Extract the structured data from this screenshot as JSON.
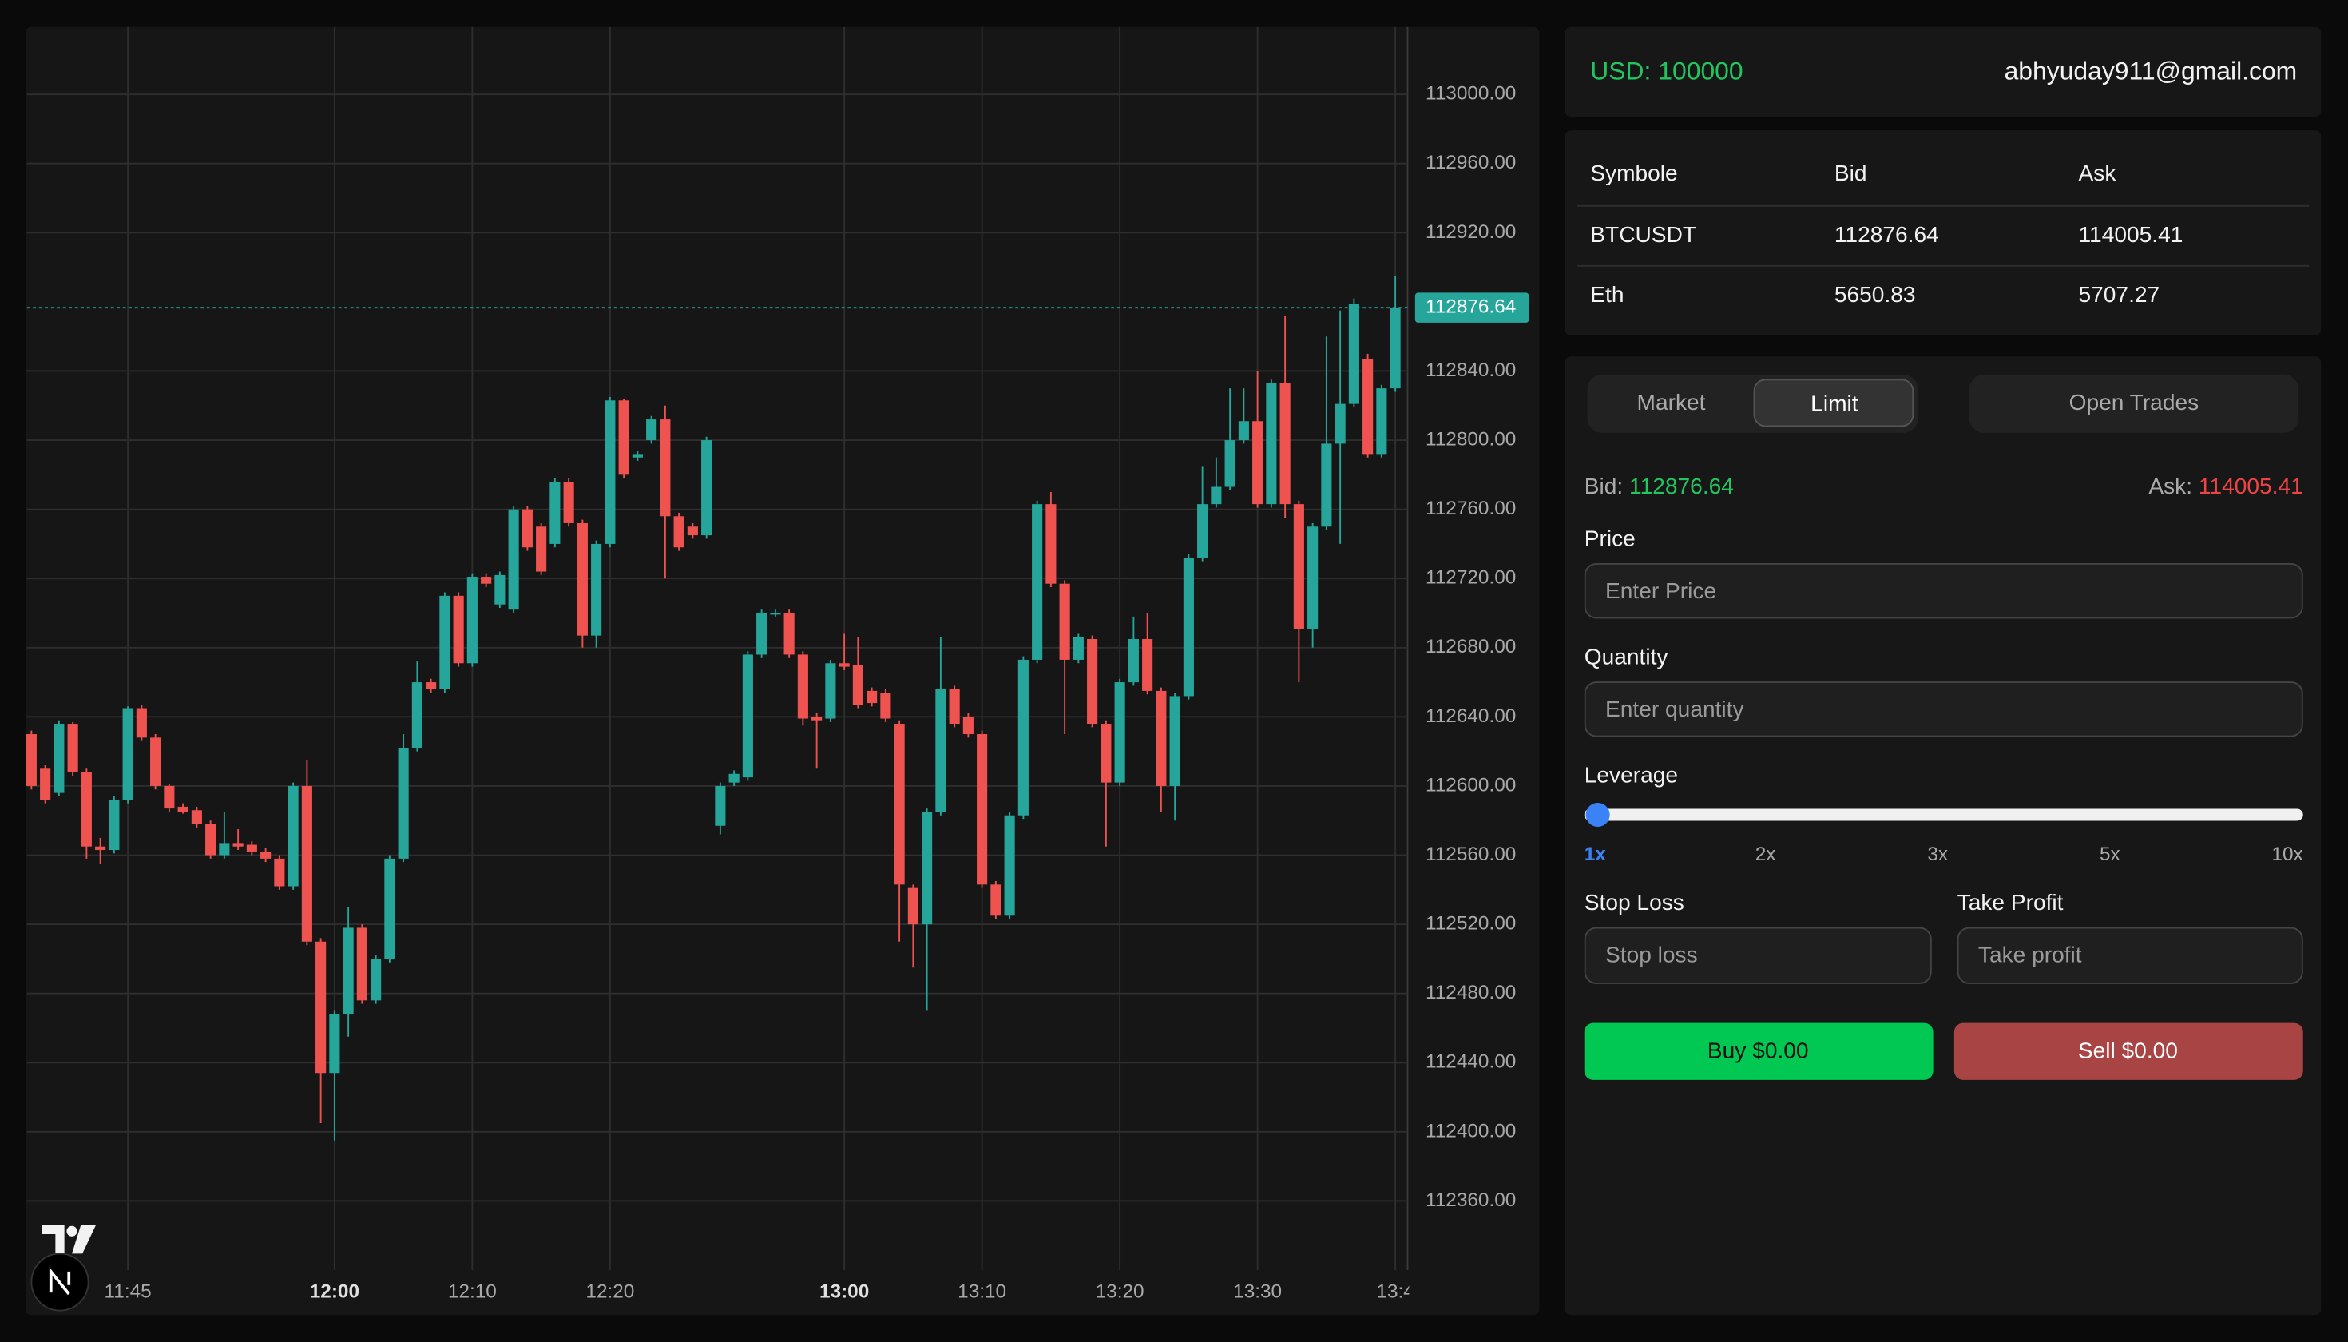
{
  "account": {
    "balance": "USD: 100000",
    "email": "abhyuday911@gmail.com"
  },
  "market_table": {
    "headers": [
      "Symbole",
      "Bid",
      "Ask"
    ],
    "rows": [
      [
        "BTCUSDT",
        "112876.64",
        "114005.41"
      ],
      [
        "Eth",
        "5650.83",
        "5707.27"
      ]
    ]
  },
  "order_form": {
    "tabs": [
      "Market",
      "Limit"
    ],
    "active_tab": "Limit",
    "open_trades": "Open Trades",
    "bid_label": "Bid:",
    "bid": "112876.64",
    "ask_label": "Ask:",
    "ask": "114005.41",
    "price_label": "Price",
    "price_placeholder": "Enter Price",
    "quantity_label": "Quantity",
    "quantity_placeholder": "Enter quantity",
    "leverage_label": "Leverage",
    "leverage_marks": [
      "1x",
      "2x",
      "3x",
      "5x",
      "10x"
    ],
    "leverage_selected": "1x",
    "stop_loss_label": "Stop Loss",
    "stop_loss_placeholder": "Stop loss",
    "take_profit_label": "Take Profit",
    "take_profit_placeholder": "Take profit",
    "buy": "Buy $0.00",
    "sell": "Sell $0.00"
  },
  "chart": {
    "type": "candlestick",
    "up_color": "#26a69a",
    "down_color": "#ef5350",
    "grid": true,
    "categories": [
      null,
      null,
      null,
      null,
      null,
      null,
      null,
      "11:45",
      null,
      null,
      null,
      null,
      null,
      null,
      null,
      null,
      null,
      null,
      null,
      null,
      null,
      null,
      "12:00",
      null,
      null,
      null,
      null,
      null,
      null,
      null,
      null,
      null,
      "12:10",
      null,
      null,
      null,
      null,
      null,
      null,
      null,
      null,
      null,
      "12:20",
      null,
      null,
      null,
      null,
      null,
      null,
      null,
      null,
      null,
      null,
      null,
      null,
      null,
      null,
      null,
      null,
      "13:00",
      null,
      null,
      null,
      null,
      null,
      null,
      null,
      null,
      null,
      "13:10",
      null,
      null,
      null,
      null,
      null,
      null,
      null,
      null,
      null,
      "13:20",
      null,
      null,
      null,
      null,
      null,
      null,
      null,
      null,
      null,
      "13:30",
      null,
      null,
      null,
      null,
      null,
      null,
      null,
      null,
      null,
      "13:4"
    ],
    "candles": [
      [
        112630,
        112632,
        112598,
        112600
      ],
      [
        112610,
        112612,
        112590,
        112592
      ],
      [
        112596,
        112638,
        112594,
        112636
      ],
      [
        112636,
        112637,
        112606,
        112608
      ],
      [
        112608,
        112610,
        112558,
        112565
      ],
      [
        112565,
        112570,
        112555,
        112563
      ],
      [
        112563,
        112594,
        112561,
        112592
      ],
      [
        112592,
        112646,
        112590,
        112645
      ],
      [
        112645,
        112647,
        112626,
        112628
      ],
      [
        112628,
        112630,
        112598,
        112600
      ],
      [
        112600,
        112601,
        112585,
        112587
      ],
      [
        112588,
        112590,
        112584,
        112585
      ],
      [
        112586,
        112588,
        112576,
        112578
      ],
      [
        112578,
        112580,
        112558,
        112560
      ],
      [
        112560,
        112585,
        112558,
        112567
      ],
      [
        112567,
        112575,
        112563,
        112565
      ],
      [
        112566,
        112568,
        112560,
        112562
      ],
      [
        112562,
        112564,
        112556,
        112558
      ],
      [
        112558,
        112560,
        112540,
        112542
      ],
      [
        112542,
        112602,
        112540,
        112600
      ],
      [
        112600,
        112615,
        112508,
        112510
      ],
      [
        112510,
        112512,
        112405,
        112434
      ],
      [
        112434,
        112470,
        112395,
        112468
      ],
      [
        112468,
        112530,
        112455,
        112518
      ],
      [
        112518,
        112520,
        112474,
        112476
      ],
      [
        112476,
        112502,
        112474,
        112500
      ],
      [
        112500,
        112560,
        112498,
        112558
      ],
      [
        112558,
        112630,
        112556,
        112622
      ],
      [
        112622,
        112672,
        112620,
        112660
      ],
      [
        112660,
        112662,
        112654,
        112656
      ],
      [
        112656,
        112712,
        112654,
        112710
      ],
      [
        112710,
        112712,
        112669,
        112671
      ],
      [
        112671,
        112723,
        112669,
        112721
      ],
      [
        112721,
        112723,
        112715,
        112717
      ],
      [
        112705,
        112724,
        112703,
        112722
      ],
      [
        112702,
        112762,
        112700,
        112760
      ],
      [
        112760,
        112762,
        112736,
        112738
      ],
      [
        112750,
        112752,
        112722,
        112724
      ],
      [
        112740,
        112778,
        112738,
        112776
      ],
      [
        112776,
        112778,
        112750,
        112752
      ],
      [
        112752,
        112754,
        112680,
        112687
      ],
      [
        112687,
        112742,
        112680,
        112740
      ],
      [
        112740,
        112825,
        112738,
        112823
      ],
      [
        112823,
        112824,
        112778,
        112780
      ],
      [
        112790,
        112794,
        112788,
        112792
      ],
      [
        112800,
        112814,
        112798,
        112812
      ],
      [
        112812,
        112820,
        112720,
        112756
      ],
      [
        112756,
        112758,
        112736,
        112738
      ],
      [
        112750,
        112752,
        112743,
        112745
      ],
      [
        112745,
        112802,
        112743,
        112800
      ],
      [
        112577,
        112602,
        112572,
        112600
      ],
      [
        112602,
        112609,
        112600,
        112607
      ],
      [
        112605,
        112678,
        112603,
        112676
      ],
      [
        112676,
        112702,
        112674,
        112700
      ],
      [
        112700,
        112702,
        112698,
        112700
      ],
      [
        112700,
        112702,
        112674,
        112676
      ],
      [
        112676,
        112678,
        112635,
        112639
      ],
      [
        112640,
        112642,
        112610,
        112638
      ],
      [
        112639,
        112673,
        112637,
        112671
      ],
      [
        112671,
        112688,
        112667,
        112669
      ],
      [
        112670,
        112686,
        112645,
        112647
      ],
      [
        112655,
        112657,
        112646,
        112648
      ],
      [
        112654,
        112656,
        112637,
        112639
      ],
      [
        112636,
        112638,
        112510,
        112543
      ],
      [
        112541,
        112543,
        112495,
        112520
      ],
      [
        112520,
        112587,
        112470,
        112585
      ],
      [
        112585,
        112686,
        112583,
        112656
      ],
      [
        112656,
        112658,
        112634,
        112636
      ],
      [
        112640,
        112642,
        112628,
        112630
      ],
      [
        112630,
        112632,
        112541,
        112543
      ],
      [
        112543,
        112545,
        112523,
        112525
      ],
      [
        112525,
        112585,
        112523,
        112583
      ],
      [
        112583,
        112675,
        112581,
        112673
      ],
      [
        112673,
        112765,
        112671,
        112763
      ],
      [
        112763,
        112770,
        112715,
        112717
      ],
      [
        112717,
        112719,
        112630,
        112673
      ],
      [
        112673,
        112688,
        112671,
        112686
      ],
      [
        112685,
        112687,
        112634,
        112636
      ],
      [
        112636,
        112638,
        112565,
        112602
      ],
      [
        112602,
        112662,
        112600,
        112660
      ],
      [
        112660,
        112698,
        112658,
        112685
      ],
      [
        112685,
        112700,
        112653,
        112655
      ],
      [
        112655,
        112657,
        112585,
        112600
      ],
      [
        112600,
        112654,
        112580,
        112652
      ],
      [
        112652,
        112734,
        112650,
        112732
      ],
      [
        112732,
        112785,
        112730,
        112763
      ],
      [
        112763,
        112790,
        112761,
        112773
      ],
      [
        112773,
        112830,
        112771,
        112800
      ],
      [
        112800,
        112830,
        112798,
        112811
      ],
      [
        112811,
        112840,
        112761,
        112763
      ],
      [
        112763,
        112835,
        112761,
        112833
      ],
      [
        112833,
        112872,
        112755,
        112763
      ],
      [
        112763,
        112765,
        112660,
        112691
      ],
      [
        112691,
        112752,
        112680,
        112750
      ],
      [
        112750,
        112860,
        112748,
        112798
      ],
      [
        112798,
        112875,
        112740,
        112821
      ],
      [
        112821,
        112882,
        112819,
        112879
      ],
      [
        112847,
        112850,
        112790,
        112792
      ],
      [
        112792,
        112832,
        112790,
        112830
      ],
      [
        112830,
        112895,
        112828,
        112876.64
      ]
    ],
    "ylim": [
      112320,
      113039
    ],
    "yticks": [
      {
        "value": 112360,
        "label": "112360.00"
      },
      {
        "value": 112400,
        "label": "112400.00"
      },
      {
        "value": 112440,
        "label": "112440.00"
      },
      {
        "value": 112480,
        "label": "112480.00"
      },
      {
        "value": 112520,
        "label": "112520.00"
      },
      {
        "value": 112560,
        "label": "112560.00"
      },
      {
        "value": 112600,
        "label": "112600.00"
      },
      {
        "value": 112640,
        "label": "112640.00"
      },
      {
        "value": 112680,
        "label": "112680.00"
      },
      {
        "value": 112720,
        "label": "112720.00"
      },
      {
        "value": 112760,
        "label": "112760.00"
      },
      {
        "value": 112800,
        "label": "112800.00"
      },
      {
        "value": 112840,
        "label": "112840.00"
      },
      {
        "value": 112920,
        "label": "112920.00"
      },
      {
        "value": 112960,
        "label": "112960.00"
      },
      {
        "value": 113000,
        "label": "113000.00"
      }
    ],
    "last_price": {
      "value": 112876.64,
      "label": "112876.64"
    }
  }
}
